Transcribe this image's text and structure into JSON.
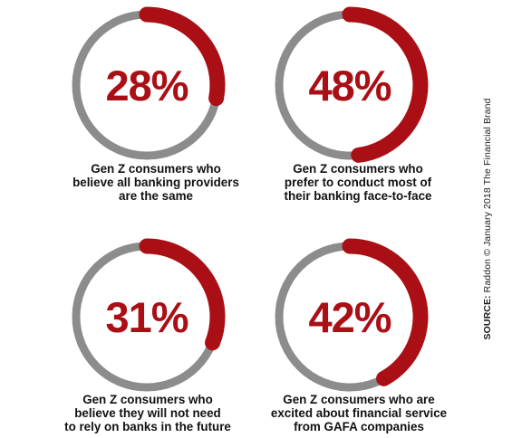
{
  "chart_data": {
    "type": "pie",
    "colors": {
      "accent": "#a90f14",
      "track": "#8c8c8c"
    },
    "items": [
      {
        "value": 28,
        "value_label": "28%",
        "caption": [
          "Gen Z consumers who",
          "believe all banking providers",
          "are the same"
        ]
      },
      {
        "value": 48,
        "value_label": "48%",
        "caption": [
          "Gen Z consumers who",
          "prefer to conduct most of",
          "their banking face-to-face"
        ]
      },
      {
        "value": 31,
        "value_label": "31%",
        "caption": [
          "Gen Z consumers who",
          "believe they will not need",
          "to rely on banks in the future"
        ]
      },
      {
        "value": 42,
        "value_label": "42%",
        "caption": [
          "Gen Z consumers who are",
          "excited about financial service",
          "from GAFA companies"
        ]
      }
    ]
  },
  "source": {
    "label": "SOURCE:",
    "text": "Raddon © January 2018 The Financial Brand"
  }
}
